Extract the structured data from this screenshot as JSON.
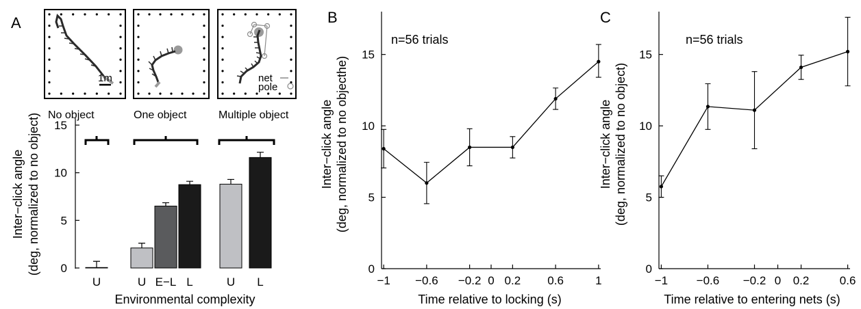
{
  "panels": {
    "a": {
      "label": "A"
    },
    "b": {
      "label": "B"
    },
    "c": {
      "label": "C"
    }
  },
  "insets": {
    "scale_label": "1m",
    "legend": {
      "net": "net",
      "pole": "pole"
    }
  },
  "colors": {
    "light_gray": "#bfc0c4",
    "dark_gray": "#5a5b5d",
    "black": "#1a1a1a",
    "trajectory": "#2a2a2a",
    "pole_fill": "#9a9a9a",
    "net_line": "#8a8a8a"
  },
  "chart_data": [
    {
      "type": "bar",
      "title": "",
      "xlabel": "Environmental complexity",
      "ylabel": "Inter−click angle",
      "ylabel2": "(deg, normalized to no object)",
      "ylim": [
        0,
        15
      ],
      "yticks": [
        "0",
        "5",
        "10",
        "15"
      ],
      "groups": [
        "No object",
        "One object",
        "Multiple object"
      ],
      "categories": [
        "U",
        "U",
        "E−L",
        "L",
        "U",
        "L"
      ],
      "group_index": [
        0,
        1,
        1,
        1,
        2,
        2
      ],
      "values": [
        0.05,
        2.1,
        6.5,
        8.75,
        8.8,
        11.6
      ],
      "errors": [
        0.65,
        0.5,
        0.35,
        0.35,
        0.5,
        0.55
      ],
      "bar_colors": [
        "light_gray",
        "light_gray",
        "dark_gray",
        "black",
        "light_gray",
        "black"
      ]
    },
    {
      "type": "line",
      "title": "",
      "annotation": "n=56 trials",
      "xlabel": "Time relative to locking (s)",
      "ylabel": "Inter−click angle",
      "ylabel2": "(deg, normalized to no objecthe)",
      "xlim": [
        -1.02,
        1.02
      ],
      "ylim": [
        0,
        18
      ],
      "xticks": [
        -1,
        -0.6,
        -0.2,
        0,
        0.2,
        0.6,
        1
      ],
      "xtick_labels": [
        "−1",
        "−0.6",
        "−0.2",
        "0",
        "0.2",
        "0.6",
        "1"
      ],
      "yticks": [
        0,
        5,
        10,
        15
      ],
      "ytick_labels": [
        "0",
        "5",
        "10",
        "15"
      ],
      "x": [
        -1,
        -0.6,
        -0.2,
        0.2,
        0.6,
        1
      ],
      "y": [
        8.4,
        6.0,
        8.5,
        8.5,
        11.9,
        14.5
      ],
      "err_low": [
        1.35,
        1.45,
        1.3,
        0.75,
        0.75,
        1.1
      ],
      "err_high": [
        1.35,
        1.45,
        1.3,
        0.75,
        0.75,
        1.2
      ]
    },
    {
      "type": "line",
      "title": "",
      "annotation": "n=56 trials",
      "xlabel": "Time relative to entering nets (s)",
      "ylabel": "Inter−click angle",
      "ylabel2": "(deg, normalized to no object)",
      "xlim": [
        -1.02,
        0.62
      ],
      "ylim": [
        0,
        18
      ],
      "xticks": [
        -1,
        -0.6,
        -0.2,
        0,
        0.2,
        0.6
      ],
      "xtick_labels": [
        "−1",
        "−0.6",
        "−0.2",
        "0",
        "0.2",
        "0.6"
      ],
      "yticks": [
        0,
        5,
        10,
        15
      ],
      "ytick_labels": [
        "0",
        "5",
        "10",
        "15"
      ],
      "x": [
        -1,
        -0.6,
        -0.2,
        0.2,
        0.6
      ],
      "y": [
        5.75,
        11.35,
        11.1,
        14.1,
        15.2
      ],
      "err_low": [
        0.75,
        1.6,
        2.7,
        0.85,
        2.4
      ],
      "err_high": [
        0.75,
        1.6,
        2.7,
        0.85,
        2.4
      ]
    }
  ]
}
